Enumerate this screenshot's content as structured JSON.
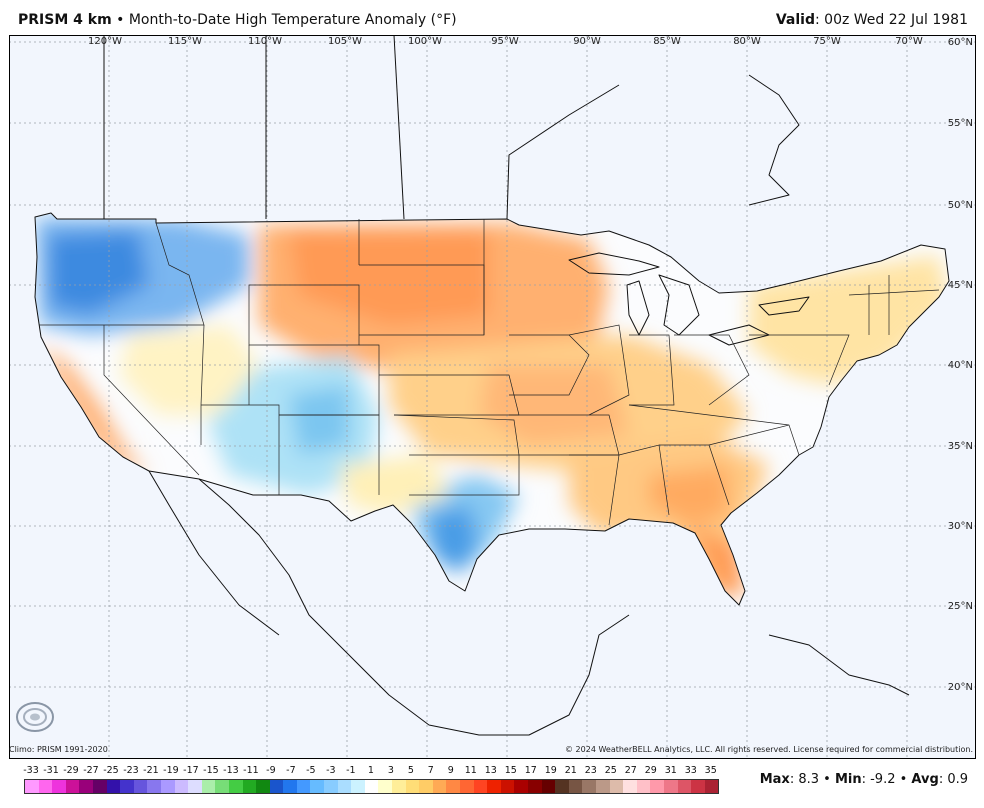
{
  "header": {
    "product": "PRISM 4 km",
    "separator": "•",
    "description": "Month-to-Date High Temperature Anomaly (°F)",
    "valid_label": "Valid",
    "valid_time": ": 00z Wed 22 Jul 1981"
  },
  "graticule": {
    "longitudes": [
      "120°W",
      "115°W",
      "110°W",
      "105°W",
      "100°W",
      "95°W",
      "90°W",
      "85°W",
      "80°W",
      "75°W",
      "70°W"
    ],
    "latitudes": [
      "60°N",
      "55°N",
      "50°N",
      "45°N",
      "40°N",
      "35°N",
      "30°N",
      "25°N",
      "20°N"
    ]
  },
  "credits": {
    "climo": "Climo: PRISM 1991-2020",
    "copyright": "© 2024 WeatherBELL Analytics, LLC. All rights reserved. License required for commercial distribution.",
    "logo": "WeatherBELL"
  },
  "legend": {
    "ticks": [
      "-33",
      "-31",
      "-29",
      "-27",
      "-25",
      "-23",
      "-21",
      "-19",
      "-17",
      "-15",
      "-13",
      "-11",
      "-9",
      "-7",
      "-5",
      "-3",
      "-1",
      "1",
      "3",
      "5",
      "7",
      "9",
      "11",
      "13",
      "15",
      "17",
      "19",
      "21",
      "23",
      "25",
      "27",
      "29",
      "31",
      "33",
      "35"
    ],
    "colors": [
      "#ff99ff",
      "#ff66ee",
      "#ee33dd",
      "#cc1199",
      "#99007a",
      "#660066",
      "#3311aa",
      "#4433cc",
      "#6655dd",
      "#8877ee",
      "#aa99ff",
      "#ccbbff",
      "#ddddff",
      "#aaeeaa",
      "#77dd77",
      "#44cc44",
      "#22aa22",
      "#118811",
      "#1a55cc",
      "#2277ee",
      "#4499ff",
      "#66bbff",
      "#88ccff",
      "#aaddff",
      "#ccf2ff",
      "#ffffff",
      "#ffffcc",
      "#ffee99",
      "#ffdd77",
      "#ffcc66",
      "#ffaa55",
      "#ff8844",
      "#ff6633",
      "#ff4422",
      "#ee2200",
      "#cc1100",
      "#aa0000",
      "#880000",
      "#660000",
      "#553322",
      "#775544",
      "#997766",
      "#bb9988",
      "#ddbbaa",
      "#ffe0e0",
      "#ffc0c8",
      "#ff99aa",
      "#ee7788",
      "#dd5566",
      "#cc3344",
      "#aa2233"
    ]
  },
  "stats": {
    "max_label": "Max",
    "max_value": ": 8.3",
    "min_label": "Min",
    "min_value": ": -9.2",
    "avg_label": "Avg",
    "avg_value": ": 0.9",
    "sep": " • "
  }
}
